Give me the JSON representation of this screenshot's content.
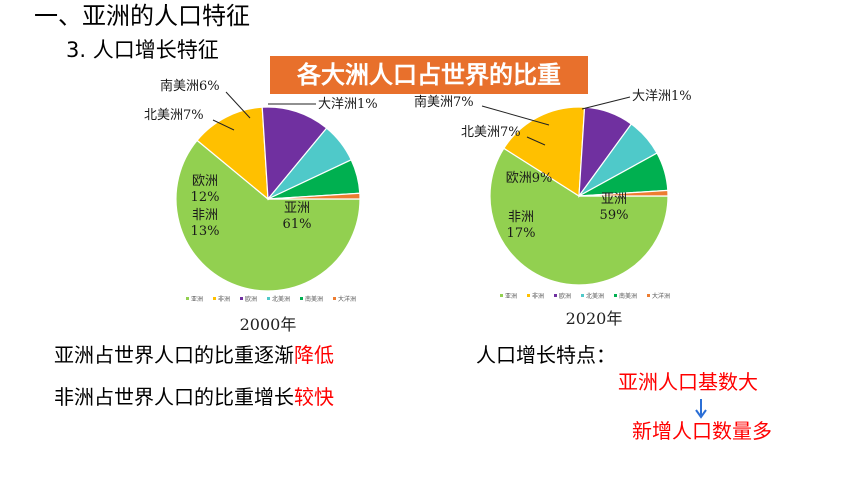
{
  "slide": {
    "heading": "一、亚洲的人口特征",
    "subheading": "3. 人口增长特征",
    "banner": "各大洲人口占世界的比重",
    "statements": [
      {
        "text": "亚洲占世界人口的比重逐渐",
        "highlight": "降低"
      },
      {
        "text": "非洲占世界人口的比重增长",
        "highlight": "较快"
      }
    ],
    "traits": {
      "title": "人口增长特点：",
      "item1": "亚洲人口基数大",
      "item2": "新增人口数量多"
    },
    "colors": {
      "highlight": "#ff0000",
      "banner": "#e8702c",
      "arrow": "#2b6fd6"
    }
  },
  "chart_data": [
    {
      "type": "pie",
      "xlabel": "2000年",
      "slices": [
        {
          "name": "亚洲",
          "value": 61,
          "label": "亚洲\n61%",
          "color": "#92d050"
        },
        {
          "name": "非洲",
          "value": 13,
          "label": "非洲\n13%",
          "color": "#ffc000"
        },
        {
          "name": "欧洲",
          "value": 12,
          "label": "欧洲\n12%",
          "color": "#7030a0"
        },
        {
          "name": "北美洲",
          "value": 7,
          "label": "北美洲7%",
          "color": "#4fc9c9"
        },
        {
          "name": "南美洲",
          "value": 6,
          "label": "南美洲6%",
          "color": "#00b050"
        },
        {
          "name": "大洋洲",
          "value": 1,
          "label": "大洋洲1%",
          "color": "#ed7d31"
        }
      ],
      "legend": [
        "亚洲",
        "非洲",
        "欧洲",
        "北美洲",
        "南美洲",
        "大洋洲"
      ],
      "legend_position": "bottom"
    },
    {
      "type": "pie",
      "xlabel": "2020年",
      "slices": [
        {
          "name": "亚洲",
          "value": 59,
          "label": "亚洲\n59%",
          "color": "#92d050"
        },
        {
          "name": "非洲",
          "value": 17,
          "label": "非洲\n17%",
          "color": "#ffc000"
        },
        {
          "name": "欧洲",
          "value": 9,
          "label": "欧洲9%",
          "color": "#7030a0"
        },
        {
          "name": "北美洲",
          "value": 7,
          "label": "北美洲7%",
          "color": "#4fc9c9"
        },
        {
          "name": "南美洲",
          "value": 7,
          "label": "南美洲7%",
          "color": "#00b050"
        },
        {
          "name": "大洋洲",
          "value": 1,
          "label": "大洋洲1%",
          "color": "#ed7d31"
        }
      ],
      "legend": [
        "亚洲",
        "非洲",
        "欧洲",
        "北美洲",
        "南美洲",
        "大洋洲"
      ],
      "legend_position": "bottom"
    }
  ]
}
